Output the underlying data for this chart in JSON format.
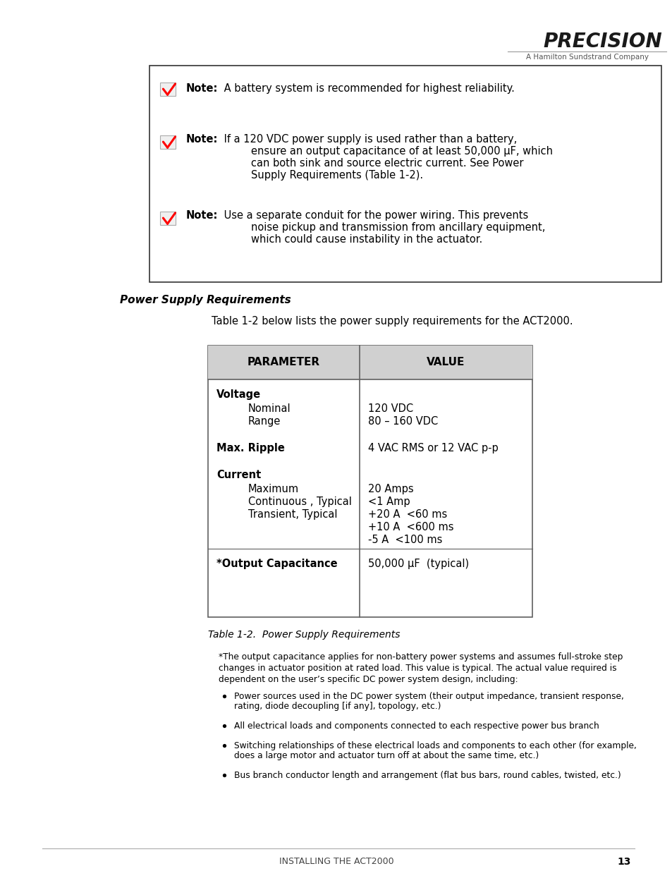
{
  "bg_color": "#ffffff",
  "logo_text": "PRECISION",
  "logo_subtitle": "A Hamilton Sundstrand Company",
  "note1_bold": "Note:",
  "note1_rest": " A battery system is recommended for highest reliability.",
  "note2_bold": "Note:",
  "note2_line1": " If a 120 VDC power supply is used rather than a battery,",
  "note2_line2": "ensure an output capacitance of at least 50,000 μF, which",
  "note2_line3": "can both sink and source electric current. See Power",
  "note2_line4": "Supply Requirements (Table 1-2).",
  "note3_bold": "Note:",
  "note3_line1": " Use a separate conduit for the power wiring. This prevents",
  "note3_line2": "noise pickup and transmission from ancillary equipment,",
  "note3_line3": "which could cause instability in the actuator.",
  "section_title": "Power Supply Requirements",
  "intro_text": "Table 1-2 below lists the power supply requirements for the ACT2000.",
  "table_header_param": "PARAMETER",
  "table_header_value": "VALUE",
  "table_caption": "Table 1-2.  Power Supply Requirements",
  "footnote_line1": "*The output capacitance applies for non-battery power systems and assumes full-stroke step",
  "footnote_line2": "changes in actuator position at rated load. This value is typical. The actual value required is",
  "footnote_line3": "dependent on the user’s specific DC power system design, including:",
  "bullet_points": [
    "Power sources used in the DC power system (their output impedance, transient response,\nrating, diode decoupling [if any], topology, etc.)",
    "All electrical loads and components connected to each respective power bus branch",
    "Switching relationships of these electrical loads and components to each other (for example,\ndoes a large motor and actuator turn off at about the same time, etc.)",
    "Bus branch conductor length and arrangement (flat bus bars, round cables, twisted, etc.)"
  ],
  "footer_text": "INSTALLING THE ACT2000",
  "footer_page": "13",
  "header_color": "#d0d0d0",
  "table_border_color": "#606060",
  "note_box_color": "#333333"
}
